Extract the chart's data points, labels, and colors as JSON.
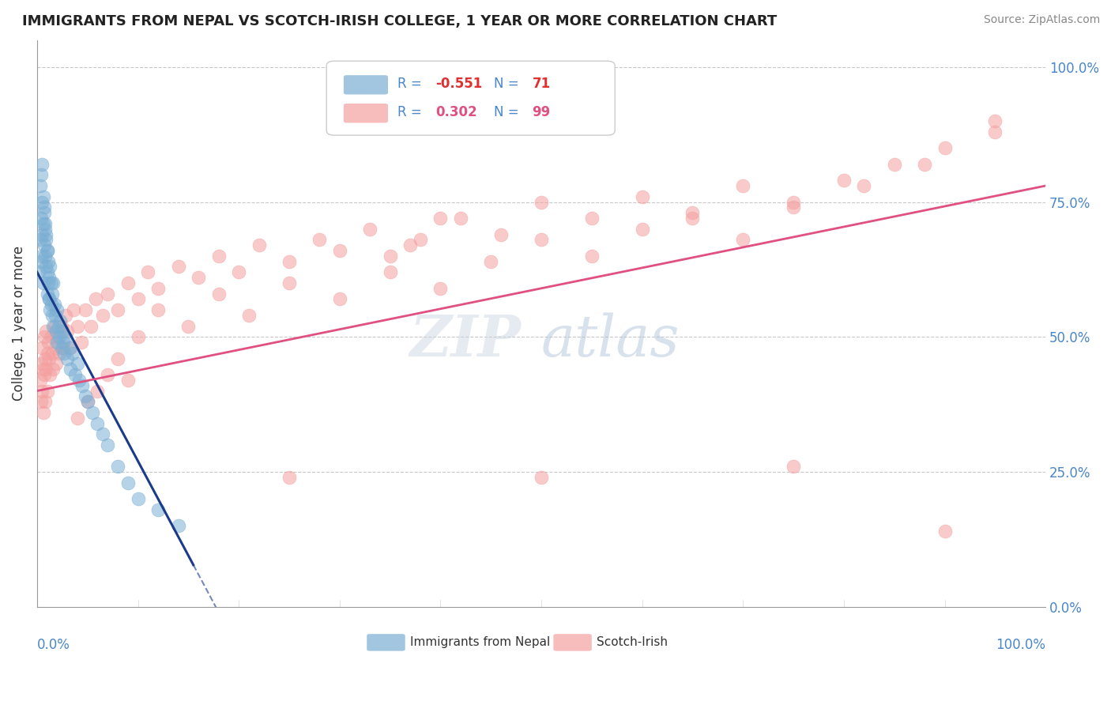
{
  "title": "IMMIGRANTS FROM NEPAL VS SCOTCH-IRISH COLLEGE, 1 YEAR OR MORE CORRELATION CHART",
  "source_text": "Source: ZipAtlas.com",
  "ylabel": "College, 1 year or more",
  "xmin": 0.0,
  "xmax": 1.0,
  "ymin": 0.0,
  "ymax": 1.05,
  "right_yticks": [
    0.0,
    0.25,
    0.5,
    0.75,
    1.0
  ],
  "right_yticklabels": [
    "0.0%",
    "25.0%",
    "50.0%",
    "75.0%",
    "100.0%"
  ],
  "legend_r_nepal": "-0.551",
  "legend_n_nepal": "71",
  "legend_r_scotch": "0.302",
  "legend_n_scotch": "99",
  "nepal_color": "#7bafd4",
  "scotch_color": "#f4a0a0",
  "nepal_line_color": "#1a3a8a",
  "scotch_line_color": "#e05080",
  "nepal_x": [
    0.002,
    0.003,
    0.004,
    0.004,
    0.005,
    0.005,
    0.005,
    0.006,
    0.006,
    0.007,
    0.007,
    0.008,
    0.008,
    0.009,
    0.009,
    0.01,
    0.01,
    0.01,
    0.011,
    0.011,
    0.012,
    0.012,
    0.013,
    0.013,
    0.014,
    0.014,
    0.015,
    0.015,
    0.016,
    0.016,
    0.017,
    0.018,
    0.019,
    0.02,
    0.02,
    0.021,
    0.022,
    0.023,
    0.024,
    0.025,
    0.026,
    0.027,
    0.028,
    0.03,
    0.032,
    0.033,
    0.035,
    0.038,
    0.04,
    0.042,
    0.045,
    0.048,
    0.05,
    0.055,
    0.06,
    0.065,
    0.07,
    0.08,
    0.09,
    0.1,
    0.12,
    0.14,
    0.003,
    0.004,
    0.005,
    0.006,
    0.007,
    0.008,
    0.009,
    0.01,
    0.012
  ],
  "nepal_y": [
    0.62,
    0.68,
    0.72,
    0.64,
    0.75,
    0.69,
    0.65,
    0.71,
    0.6,
    0.73,
    0.67,
    0.65,
    0.7,
    0.63,
    0.68,
    0.66,
    0.62,
    0.58,
    0.64,
    0.6,
    0.61,
    0.57,
    0.63,
    0.55,
    0.6,
    0.56,
    0.58,
    0.54,
    0.6,
    0.52,
    0.56,
    0.54,
    0.51,
    0.55,
    0.49,
    0.52,
    0.5,
    0.53,
    0.48,
    0.51,
    0.49,
    0.47,
    0.5,
    0.46,
    0.48,
    0.44,
    0.47,
    0.43,
    0.45,
    0.42,
    0.41,
    0.39,
    0.38,
    0.36,
    0.34,
    0.32,
    0.3,
    0.26,
    0.23,
    0.2,
    0.18,
    0.15,
    0.78,
    0.8,
    0.82,
    0.76,
    0.74,
    0.71,
    0.69,
    0.66,
    0.57
  ],
  "scotch_x": [
    0.003,
    0.004,
    0.004,
    0.005,
    0.005,
    0.006,
    0.006,
    0.007,
    0.007,
    0.008,
    0.008,
    0.009,
    0.009,
    0.01,
    0.01,
    0.011,
    0.012,
    0.013,
    0.014,
    0.015,
    0.016,
    0.017,
    0.018,
    0.019,
    0.02,
    0.022,
    0.024,
    0.026,
    0.028,
    0.03,
    0.033,
    0.036,
    0.04,
    0.044,
    0.048,
    0.053,
    0.058,
    0.065,
    0.07,
    0.08,
    0.09,
    0.1,
    0.11,
    0.12,
    0.14,
    0.16,
    0.18,
    0.2,
    0.22,
    0.25,
    0.28,
    0.3,
    0.33,
    0.37,
    0.4,
    0.35,
    0.38,
    0.42,
    0.46,
    0.5,
    0.55,
    0.6,
    0.65,
    0.7,
    0.75,
    0.8,
    0.85,
    0.9,
    0.95,
    0.04,
    0.05,
    0.06,
    0.07,
    0.08,
    0.09,
    0.1,
    0.12,
    0.15,
    0.18,
    0.21,
    0.25,
    0.3,
    0.35,
    0.4,
    0.45,
    0.5,
    0.55,
    0.6,
    0.65,
    0.7,
    0.75,
    0.82,
    0.88,
    0.95,
    0.25,
    0.5,
    0.75,
    0.9
  ],
  "scotch_y": [
    0.42,
    0.45,
    0.38,
    0.48,
    0.4,
    0.44,
    0.36,
    0.5,
    0.43,
    0.46,
    0.38,
    0.51,
    0.44,
    0.47,
    0.4,
    0.49,
    0.46,
    0.43,
    0.5,
    0.47,
    0.44,
    0.52,
    0.48,
    0.45,
    0.5,
    0.47,
    0.52,
    0.48,
    0.54,
    0.51,
    0.48,
    0.55,
    0.52,
    0.49,
    0.55,
    0.52,
    0.57,
    0.54,
    0.58,
    0.55,
    0.6,
    0.57,
    0.62,
    0.59,
    0.63,
    0.61,
    0.65,
    0.62,
    0.67,
    0.64,
    0.68,
    0.66,
    0.7,
    0.67,
    0.72,
    0.65,
    0.68,
    0.72,
    0.69,
    0.75,
    0.72,
    0.76,
    0.73,
    0.78,
    0.74,
    0.79,
    0.82,
    0.85,
    0.88,
    0.35,
    0.38,
    0.4,
    0.43,
    0.46,
    0.42,
    0.5,
    0.55,
    0.52,
    0.58,
    0.54,
    0.6,
    0.57,
    0.62,
    0.59,
    0.64,
    0.68,
    0.65,
    0.7,
    0.72,
    0.68,
    0.75,
    0.78,
    0.82,
    0.9,
    0.24,
    0.24,
    0.26,
    0.14
  ],
  "nepal_line_intercept": 0.62,
  "nepal_line_slope": -3.5,
  "nepal_line_x_solid_end": 0.155,
  "nepal_line_x_dashed_end": 0.38,
  "scotch_line_intercept": 0.4,
  "scotch_line_slope": 0.38
}
